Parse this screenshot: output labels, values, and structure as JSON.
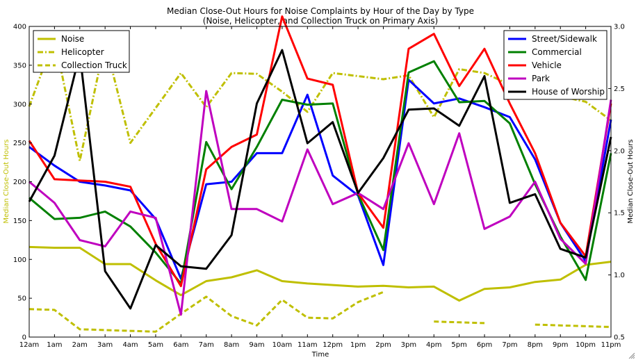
{
  "chart_data": {
    "type": "line",
    "title": "Median Close-Out Hours for Noise Complaints by Hour of the Day by Type",
    "subtitle": "(Noise, Helicopter, and Collection Truck on Primary Axis)",
    "xlabel": "Time",
    "ylabel": "Median Close-Out Hours",
    "ylabel_right": "Median Close-Out Hours",
    "categories": [
      "12am",
      "1am",
      "2am",
      "3am",
      "4am",
      "5am",
      "6am",
      "7am",
      "8am",
      "9am",
      "10am",
      "11am",
      "12pm",
      "1pm",
      "2pm",
      "3pm",
      "4pm",
      "5pm",
      "6pm",
      "7pm",
      "8pm",
      "9pm",
      "10pm",
      "11pm"
    ],
    "ylim": [
      0,
      400
    ],
    "yticks": [
      "0",
      "50",
      "100",
      "150",
      "200",
      "250",
      "300",
      "350",
      "400"
    ],
    "ylim_right": [
      0.5,
      3.0
    ],
    "yticks_right": [
      "0.5",
      "1.0",
      "1.5",
      "2.0",
      "2.5",
      "3.0"
    ],
    "ylabel_color": "#bfbf00",
    "grid": false,
    "primary_series": [
      {
        "name": "Noise",
        "color": "#bfbf00",
        "style": "solid",
        "values": [
          116,
          115,
          115,
          94,
          94,
          73,
          54,
          72,
          77,
          86,
          72,
          69,
          67,
          65,
          66,
          64,
          65,
          47,
          62,
          64,
          71,
          74,
          93,
          97
        ]
      },
      {
        "name": "Helicopter",
        "color": "#bfbf00",
        "style": "dashdot",
        "values": [
          297,
          385,
          227,
          380,
          250,
          295,
          340,
          296,
          340,
          339,
          316,
          290,
          340,
          336,
          332,
          337,
          283,
          345,
          340,
          325,
          null,
          310,
          303,
          279
        ]
      },
      {
        "name": "Collection Truck",
        "color": "#bfbf00",
        "style": "dashed",
        "values": [
          36,
          35,
          10,
          9,
          8,
          7,
          30,
          52,
          27,
          15,
          48,
          25,
          24,
          45,
          58,
          null,
          20,
          19,
          18,
          null,
          16,
          15,
          14,
          13
        ]
      }
    ],
    "secondary_series": [
      {
        "name": "Street/Sidewalk",
        "color": "#0000ff",
        "values": [
          2.03,
          1.88,
          1.75,
          1.72,
          1.68,
          1.45,
          0.97,
          1.73,
          1.75,
          1.98,
          1.98,
          2.45,
          1.8,
          1.64,
          1.08,
          2.57,
          2.38,
          2.42,
          2.35,
          2.27,
          1.93,
          1.42,
          1.11,
          2.25
        ]
      },
      {
        "name": "Commercial",
        "color": "#008000",
        "values": [
          1.62,
          1.45,
          1.46,
          1.51,
          1.39,
          1.18,
          0.93,
          2.07,
          1.69,
          2.03,
          2.41,
          2.37,
          2.38,
          1.65,
          1.2,
          2.63,
          2.72,
          2.39,
          2.4,
          2.22,
          1.73,
          1.31,
          0.96,
          1.98
        ]
      },
      {
        "name": "Vehicle",
        "color": "#ff0000",
        "values": [
          2.08,
          1.77,
          1.76,
          1.75,
          1.71,
          1.25,
          0.91,
          1.85,
          2.03,
          2.13,
          3.08,
          2.58,
          2.53,
          1.66,
          1.38,
          2.82,
          2.94,
          2.52,
          2.82,
          2.38,
          1.98,
          1.42,
          1.15,
          2.38
        ]
      },
      {
        "name": "Park",
        "color": "#bf00bf",
        "values": [
          1.75,
          1.58,
          1.28,
          1.23,
          1.51,
          1.46,
          0.68,
          2.48,
          1.53,
          1.53,
          1.43,
          2.01,
          1.57,
          1.66,
          1.53,
          2.06,
          1.57,
          2.14,
          1.37,
          1.47,
          1.75,
          1.29,
          1.09,
          2.41
        ]
      },
      {
        "name": "House of Worship",
        "color": "#000000",
        "values": [
          1.59,
          1.96,
          2.78,
          1.03,
          0.73,
          1.24,
          1.07,
          1.05,
          1.32,
          2.38,
          2.81,
          2.06,
          2.23,
          1.66,
          1.94,
          2.33,
          2.34,
          2.2,
          2.6,
          1.58,
          1.65,
          1.21,
          1.14,
          2.11
        ]
      }
    ],
    "legend_left": "top-left",
    "legend_right": "top-right"
  }
}
